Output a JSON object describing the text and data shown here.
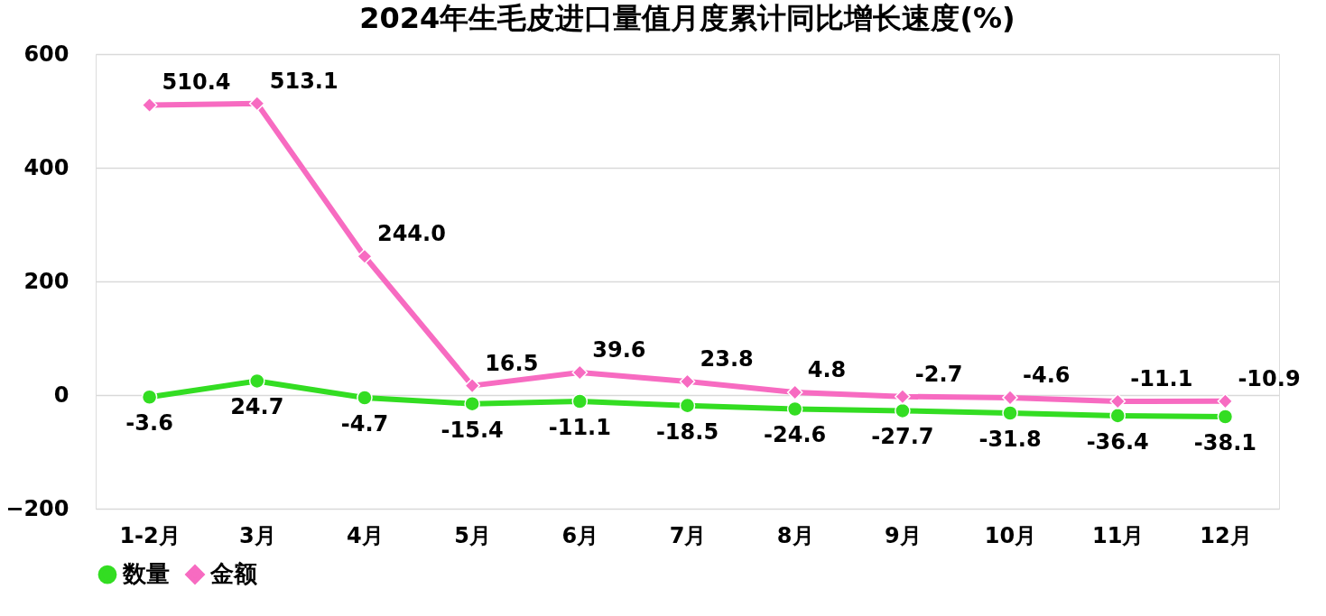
{
  "chart_data": {
    "type": "line",
    "title": "2024年生毛皮进口量值月度累计同比增长速度(%)",
    "categories": [
      "1-2月",
      "3月",
      "4月",
      "5月",
      "6月",
      "7月",
      "8月",
      "9月",
      "10月",
      "11月",
      "12月"
    ],
    "series": [
      {
        "name": "数量",
        "color": "#33dd22",
        "marker": "circle",
        "values": [
          -3.6,
          24.7,
          -4.7,
          -15.4,
          -11.1,
          -18.5,
          -24.6,
          -27.7,
          -31.8,
          -36.4,
          -38.1
        ],
        "value_labels": [
          "-3.6",
          "24.7",
          "-4.7",
          "-15.4",
          "-11.1",
          "-18.5",
          "-24.6",
          "-27.7",
          "-31.8",
          "-36.4",
          "-38.1"
        ]
      },
      {
        "name": "金额",
        "color": "#f76bc1",
        "marker": "diamond",
        "values": [
          510.4,
          513.1,
          244.0,
          16.5,
          39.6,
          23.8,
          4.8,
          -2.7,
          -4.6,
          -11.1,
          -10.9
        ],
        "value_labels": [
          "510.4",
          "513.1",
          "244.0",
          "16.5",
          "39.6",
          "23.8",
          "4.8",
          "-2.7",
          "-4.6",
          "-11.1",
          "-10.9"
        ]
      }
    ],
    "ylim": [
      -200,
      600
    ],
    "yticks": [
      -200,
      0,
      200,
      400,
      600
    ],
    "grid": "y",
    "legend": "bottom",
    "line_style": "solid"
  }
}
